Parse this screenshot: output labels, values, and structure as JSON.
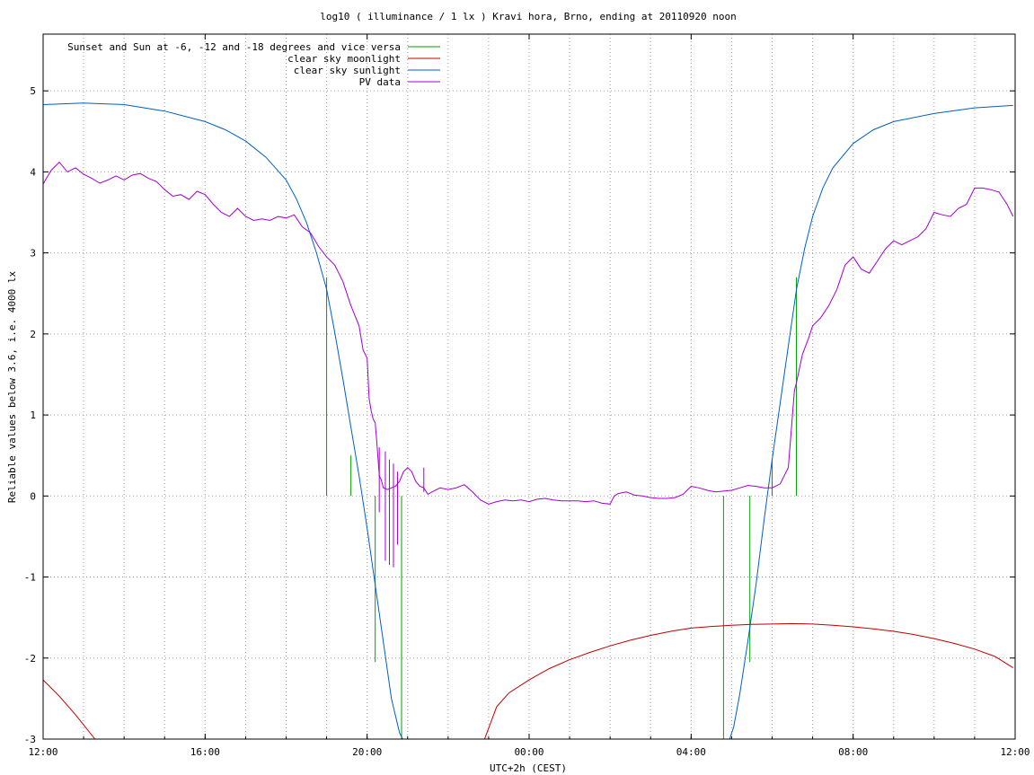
{
  "chart_data": {
    "type": "line",
    "title": "log10 ( illuminance / 1 lx ) Kravi hora, Brno, ending at 20110920 noon",
    "xlabel": "UTC+2h (CEST)",
    "ylabel": "Reliable values below 3.6, i.e. 4000 lx",
    "xlim": [
      -12,
      12
    ],
    "ylim": [
      -3,
      5.7
    ],
    "x_unit": "hours relative to 00:00 (UTC+2h)",
    "x_ticks": [
      {
        "value": -12,
        "label": "12:00"
      },
      {
        "value": -8,
        "label": "16:00"
      },
      {
        "value": -4,
        "label": "20:00"
      },
      {
        "value": 0,
        "label": "00:00"
      },
      {
        "value": 4,
        "label": "04:00"
      },
      {
        "value": 8,
        "label": "08:00"
      },
      {
        "value": 12,
        "label": "12:00"
      }
    ],
    "y_ticks": [
      {
        "value": -3,
        "label": "-3"
      },
      {
        "value": -2,
        "label": "-2"
      },
      {
        "value": -1,
        "label": "-1"
      },
      {
        "value": 0,
        "label": "0"
      },
      {
        "value": 1,
        "label": "1"
      },
      {
        "value": 2,
        "label": "2"
      },
      {
        "value": 3,
        "label": "3"
      },
      {
        "value": 4,
        "label": "4"
      },
      {
        "value": 5,
        "label": "5"
      }
    ],
    "grid": true,
    "legend_position": "top-left",
    "series": [
      {
        "name": "Sunset and Sun at -6, -12 and -18 degrees and vice versa",
        "color": "#00a000",
        "kind": "impulses",
        "points": [
          [
            -5.0,
            2.7
          ],
          [
            -4.4,
            0.5
          ],
          [
            -3.8,
            -2.05
          ],
          [
            -3.15,
            -3.0
          ],
          [
            4.8,
            -3.0
          ],
          [
            5.45,
            -2.05
          ],
          [
            6.0,
            0.45
          ],
          [
            6.6,
            2.7
          ]
        ]
      },
      {
        "name": "clear sky moonlight",
        "color": "#c00000",
        "kind": "line",
        "segments": [
          [
            [
              -12.0,
              -2.27
            ],
            [
              -11.6,
              -2.47
            ],
            [
              -11.2,
              -2.7
            ],
            [
              -10.8,
              -2.95
            ],
            [
              -10.72,
              -3.0
            ]
          ],
          [
            [
              -1.1,
              -3.0
            ],
            [
              -0.8,
              -2.6
            ],
            [
              -0.5,
              -2.43
            ],
            [
              0.0,
              -2.27
            ],
            [
              0.5,
              -2.13
            ],
            [
              1.0,
              -2.02
            ],
            [
              1.5,
              -1.93
            ],
            [
              2.0,
              -1.85
            ],
            [
              2.5,
              -1.78
            ],
            [
              3.0,
              -1.72
            ],
            [
              3.5,
              -1.67
            ],
            [
              4.0,
              -1.63
            ],
            [
              4.5,
              -1.61
            ],
            [
              5.0,
              -1.595
            ],
            [
              5.5,
              -1.585
            ],
            [
              6.0,
              -1.58
            ],
            [
              6.5,
              -1.575
            ],
            [
              7.0,
              -1.58
            ],
            [
              7.5,
              -1.595
            ],
            [
              8.0,
              -1.615
            ],
            [
              8.5,
              -1.64
            ],
            [
              9.0,
              -1.67
            ],
            [
              9.5,
              -1.71
            ],
            [
              10.0,
              -1.76
            ],
            [
              10.5,
              -1.82
            ],
            [
              11.0,
              -1.89
            ],
            [
              11.5,
              -1.98
            ],
            [
              11.95,
              -2.12
            ]
          ]
        ]
      },
      {
        "name": "clear sky sunlight",
        "color": "#0060c0",
        "kind": "line",
        "segments": [
          [
            [
              -12.0,
              4.83
            ],
            [
              -11.0,
              4.85
            ],
            [
              -10.0,
              4.83
            ],
            [
              -9.0,
              4.75
            ],
            [
              -8.0,
              4.62
            ],
            [
              -7.5,
              4.52
            ],
            [
              -7.0,
              4.38
            ],
            [
              -6.5,
              4.18
            ],
            [
              -6.0,
              3.9
            ],
            [
              -5.75,
              3.67
            ],
            [
              -5.5,
              3.38
            ],
            [
              -5.25,
              3.0
            ],
            [
              -5.0,
              2.55
            ],
            [
              -4.8,
              2.02
            ],
            [
              -4.6,
              1.45
            ],
            [
              -4.4,
              0.85
            ],
            [
              -4.2,
              0.25
            ],
            [
              -4.0,
              -0.4
            ],
            [
              -3.8,
              -1.1
            ],
            [
              -3.6,
              -1.8
            ],
            [
              -3.4,
              -2.5
            ],
            [
              -3.2,
              -2.92
            ],
            [
              -3.12,
              -3.0
            ]
          ],
          [
            [
              4.95,
              -3.0
            ],
            [
              5.05,
              -2.85
            ],
            [
              5.2,
              -2.45
            ],
            [
              5.4,
              -1.8
            ],
            [
              5.6,
              -1.1
            ],
            [
              5.8,
              -0.3
            ],
            [
              6.0,
              0.45
            ],
            [
              6.2,
              1.15
            ],
            [
              6.4,
              1.85
            ],
            [
              6.6,
              2.55
            ],
            [
              6.8,
              3.05
            ],
            [
              7.0,
              3.45
            ],
            [
              7.25,
              3.8
            ],
            [
              7.5,
              4.05
            ],
            [
              8.0,
              4.35
            ],
            [
              8.5,
              4.52
            ],
            [
              9.0,
              4.62
            ],
            [
              10.0,
              4.72
            ],
            [
              11.0,
              4.79
            ],
            [
              11.95,
              4.82
            ]
          ]
        ]
      },
      {
        "name": "PV data",
        "color": "#a000d0",
        "kind": "line",
        "points": [
          [
            -12.0,
            3.85
          ],
          [
            -11.8,
            4.02
          ],
          [
            -11.6,
            4.12
          ],
          [
            -11.4,
            4.0
          ],
          [
            -11.2,
            4.05
          ],
          [
            -11.0,
            3.97
          ],
          [
            -10.8,
            3.92
          ],
          [
            -10.6,
            3.86
          ],
          [
            -10.4,
            3.9
          ],
          [
            -10.2,
            3.95
          ],
          [
            -10.0,
            3.9
          ],
          [
            -9.8,
            3.96
          ],
          [
            -9.6,
            3.98
          ],
          [
            -9.4,
            3.92
          ],
          [
            -9.2,
            3.88
          ],
          [
            -9.0,
            3.78
          ],
          [
            -8.8,
            3.7
          ],
          [
            -8.6,
            3.72
          ],
          [
            -8.4,
            3.66
          ],
          [
            -8.2,
            3.76
          ],
          [
            -8.0,
            3.72
          ],
          [
            -7.8,
            3.6
          ],
          [
            -7.6,
            3.5
          ],
          [
            -7.4,
            3.45
          ],
          [
            -7.2,
            3.55
          ],
          [
            -7.0,
            3.45
          ],
          [
            -6.8,
            3.4
          ],
          [
            -6.6,
            3.42
          ],
          [
            -6.4,
            3.4
          ],
          [
            -6.2,
            3.45
          ],
          [
            -6.0,
            3.43
          ],
          [
            -5.8,
            3.47
          ],
          [
            -5.6,
            3.32
          ],
          [
            -5.4,
            3.25
          ],
          [
            -5.2,
            3.08
          ],
          [
            -5.0,
            2.95
          ],
          [
            -4.8,
            2.85
          ],
          [
            -4.6,
            2.65
          ],
          [
            -4.4,
            2.35
          ],
          [
            -4.2,
            2.1
          ],
          [
            -4.1,
            1.8
          ],
          [
            -4.0,
            1.7
          ],
          [
            -3.95,
            1.2
          ],
          [
            -3.9,
            1.05
          ],
          [
            -3.85,
            0.95
          ],
          [
            -3.8,
            0.9
          ],
          [
            -3.75,
            0.6
          ],
          [
            -3.7,
            0.25
          ],
          [
            -3.65,
            0.2
          ],
          [
            -3.6,
            0.1
          ],
          [
            -3.5,
            0.08
          ],
          [
            -3.4,
            0.1
          ],
          [
            -3.3,
            0.12
          ],
          [
            -3.2,
            0.18
          ],
          [
            -3.1,
            0.3
          ],
          [
            -3.0,
            0.35
          ],
          [
            -2.9,
            0.3
          ],
          [
            -2.8,
            0.18
          ],
          [
            -2.7,
            0.12
          ],
          [
            -2.6,
            0.1
          ],
          [
            -2.5,
            0.02
          ],
          [
            -2.4,
            0.05
          ],
          [
            -2.2,
            0.1
          ],
          [
            -2.0,
            0.08
          ],
          [
            -1.8,
            0.1
          ],
          [
            -1.6,
            0.14
          ],
          [
            -1.4,
            0.05
          ],
          [
            -1.2,
            -0.05
          ],
          [
            -1.0,
            -0.1
          ],
          [
            -0.8,
            -0.07
          ],
          [
            -0.6,
            -0.05
          ],
          [
            -0.4,
            -0.06
          ],
          [
            -0.2,
            -0.05
          ],
          [
            0.0,
            -0.07
          ],
          [
            0.2,
            -0.04
          ],
          [
            0.4,
            -0.03
          ],
          [
            0.6,
            -0.05
          ],
          [
            0.8,
            -0.06
          ],
          [
            1.0,
            -0.06
          ],
          [
            1.2,
            -0.06
          ],
          [
            1.4,
            -0.07
          ],
          [
            1.6,
            -0.06
          ],
          [
            1.8,
            -0.09
          ],
          [
            2.0,
            -0.1
          ],
          [
            2.1,
            0.0
          ],
          [
            2.2,
            0.03
          ],
          [
            2.4,
            0.05
          ],
          [
            2.6,
            0.01
          ],
          [
            2.8,
            0.0
          ],
          [
            3.0,
            -0.02
          ],
          [
            3.2,
            -0.03
          ],
          [
            3.4,
            -0.03
          ],
          [
            3.6,
            -0.02
          ],
          [
            3.8,
            0.02
          ],
          [
            4.0,
            0.12
          ],
          [
            4.2,
            0.1
          ],
          [
            4.4,
            0.07
          ],
          [
            4.6,
            0.05
          ],
          [
            4.8,
            0.06
          ],
          [
            5.0,
            0.07
          ],
          [
            5.2,
            0.1
          ],
          [
            5.4,
            0.13
          ],
          [
            5.6,
            0.12
          ],
          [
            5.8,
            0.1
          ],
          [
            6.0,
            0.1
          ],
          [
            6.2,
            0.15
          ],
          [
            6.4,
            0.35
          ],
          [
            6.55,
            1.3
          ],
          [
            6.6,
            1.4
          ],
          [
            6.75,
            1.75
          ],
          [
            6.9,
            1.95
          ],
          [
            7.0,
            2.1
          ],
          [
            7.2,
            2.2
          ],
          [
            7.4,
            2.35
          ],
          [
            7.6,
            2.55
          ],
          [
            7.8,
            2.85
          ],
          [
            8.0,
            2.95
          ],
          [
            8.2,
            2.8
          ],
          [
            8.4,
            2.75
          ],
          [
            8.6,
            2.9
          ],
          [
            8.8,
            3.05
          ],
          [
            9.0,
            3.15
          ],
          [
            9.2,
            3.1
          ],
          [
            9.4,
            3.15
          ],
          [
            9.6,
            3.2
          ],
          [
            9.8,
            3.3
          ],
          [
            10.0,
            3.5
          ],
          [
            10.2,
            3.47
          ],
          [
            10.4,
            3.45
          ],
          [
            10.6,
            3.55
          ],
          [
            10.8,
            3.6
          ],
          [
            11.0,
            3.8
          ],
          [
            11.2,
            3.8
          ],
          [
            11.4,
            3.78
          ],
          [
            11.6,
            3.75
          ],
          [
            11.8,
            3.6
          ],
          [
            11.95,
            3.45
          ]
        ],
        "spikes": [
          [
            -3.7,
            0.6,
            -0.2
          ],
          [
            -3.55,
            0.55,
            -0.8
          ],
          [
            -3.45,
            0.45,
            -0.85
          ],
          [
            -3.35,
            0.4,
            -0.88
          ],
          [
            -3.25,
            0.3,
            -0.6
          ],
          [
            -2.6,
            0.35,
            0.05
          ]
        ]
      }
    ]
  }
}
